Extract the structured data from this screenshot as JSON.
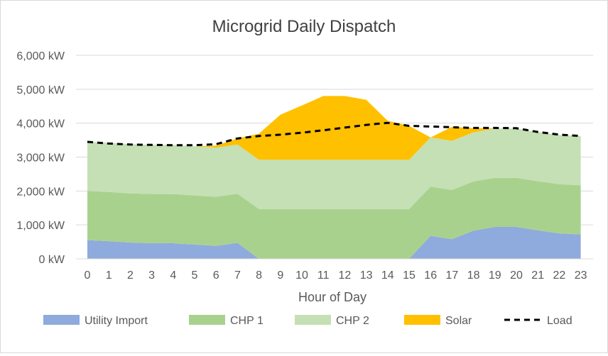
{
  "chart_data": {
    "type": "area",
    "title": "Microgrid Daily Dispatch",
    "xlabel": "Hour of Day",
    "ylabel": "",
    "ylim": [
      0,
      6000
    ],
    "y_ticks": [
      0,
      1000,
      2000,
      3000,
      4000,
      5000,
      6000
    ],
    "y_tick_labels": [
      "0 kW",
      "1,000 kW",
      "2,000 kW",
      "3,000 kW",
      "4,000 kW",
      "5,000 kW",
      "6,000 kW"
    ],
    "categories": [
      "0",
      "1",
      "2",
      "3",
      "4",
      "5",
      "6",
      "7",
      "8",
      "9",
      "10",
      "11",
      "12",
      "13",
      "14",
      "15",
      "16",
      "17",
      "18",
      "19",
      "20",
      "21",
      "22",
      "23"
    ],
    "grid": true,
    "legend_position": "bottom",
    "series": [
      {
        "name": "Utility Import",
        "kind": "stacked-area",
        "color": "#8faadc",
        "values": [
          550,
          520,
          480,
          460,
          460,
          420,
          380,
          470,
          0,
          0,
          0,
          0,
          0,
          0,
          0,
          0,
          680,
          580,
          830,
          940,
          940,
          840,
          750,
          720
        ]
      },
      {
        "name": "CHP 1",
        "kind": "stacked-area",
        "color": "#a9d18e",
        "values": [
          1450,
          1450,
          1450,
          1450,
          1450,
          1450,
          1450,
          1450,
          1470,
          1470,
          1470,
          1470,
          1470,
          1470,
          1470,
          1470,
          1450,
          1450,
          1450,
          1450,
          1450,
          1450,
          1450,
          1450
        ]
      },
      {
        "name": "CHP 2",
        "kind": "stacked-area",
        "color": "#c5e0b4",
        "values": [
          1450,
          1450,
          1450,
          1450,
          1450,
          1450,
          1450,
          1450,
          1450,
          1450,
          1450,
          1450,
          1450,
          1450,
          1450,
          1450,
          1450,
          1450,
          1450,
          1450,
          1450,
          1450,
          1450,
          1450
        ]
      },
      {
        "name": "Solar",
        "kind": "stacked-area",
        "color": "#ffc000",
        "values": [
          0,
          0,
          0,
          0,
          0,
          0,
          60,
          180,
          770,
          1330,
          1600,
          1880,
          1880,
          1770,
          1150,
          1000,
          0,
          410,
          120,
          0,
          0,
          0,
          0,
          0
        ]
      },
      {
        "name": "Load",
        "kind": "dashed-line",
        "color": "#000000",
        "values": [
          3450,
          3400,
          3370,
          3360,
          3350,
          3350,
          3380,
          3550,
          3620,
          3660,
          3720,
          3790,
          3870,
          3950,
          4010,
          3920,
          3900,
          3880,
          3860,
          3860,
          3850,
          3740,
          3660,
          3620
        ]
      }
    ]
  }
}
